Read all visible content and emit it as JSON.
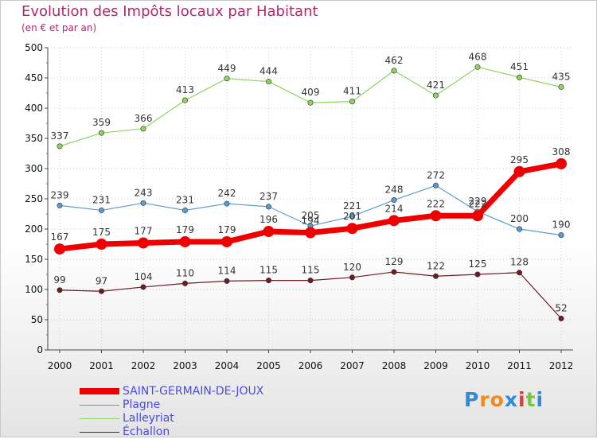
{
  "header": {
    "title": "Evolution des Impôts locaux par Habitant",
    "subtitle": "(en € et par an)"
  },
  "chart_data": {
    "type": "line",
    "title": "Evolution des Impôts locaux par Habitant",
    "subtitle": "(en € et par an)",
    "xlabel": "",
    "ylabel": "",
    "ylim": [
      0,
      500
    ],
    "yticks": [
      0,
      50,
      100,
      150,
      200,
      250,
      300,
      350,
      400,
      450,
      500
    ],
    "categories": [
      "2000",
      "2001",
      "2002",
      "2003",
      "2004",
      "2005",
      "2006",
      "2007",
      "2008",
      "2009",
      "2010",
      "2011",
      "2012"
    ],
    "legend_position": "bottom-left",
    "series": [
      {
        "name": "Lalleyriat",
        "color": "#8fd45e",
        "values": [
          337,
          359,
          366,
          413,
          449,
          444,
          409,
          411,
          462,
          421,
          468,
          451,
          435
        ]
      },
      {
        "name": "Plagne",
        "color": "#5b9bd5",
        "values": [
          239,
          231,
          243,
          231,
          242,
          237,
          205,
          221,
          248,
          272,
          229,
          200,
          190
        ]
      },
      {
        "name": "Échallon",
        "color": "#6b1c24",
        "values": [
          99,
          97,
          104,
          110,
          114,
          115,
          115,
          120,
          129,
          122,
          125,
          128,
          52
        ]
      },
      {
        "name": "SAINT-GERMAIN-DE-JOUX",
        "color": "#ee0000",
        "values": [
          167,
          175,
          177,
          179,
          179,
          196,
          194,
          201,
          214,
          222,
          222,
          295,
          308
        ]
      }
    ]
  },
  "legend": {
    "items": [
      {
        "label": "SAINT-GERMAIN-DE-JOUX",
        "color": "#ee0000"
      },
      {
        "label": "Plagne",
        "color": "#5b9bd5"
      },
      {
        "label": "Lalleyriat",
        "color": "#8fd45e"
      },
      {
        "label": "Échallon",
        "color": "#6b1c24"
      }
    ]
  },
  "logo": {
    "letters": [
      "P",
      "r",
      "o",
      "x",
      "i",
      "t",
      "i"
    ],
    "colors": [
      "#2e8bd8",
      "#f08a1c",
      "#f08a1c",
      "#2e8bd8",
      "#e03c3c",
      "#7cc444",
      "#2e8bd8"
    ]
  }
}
